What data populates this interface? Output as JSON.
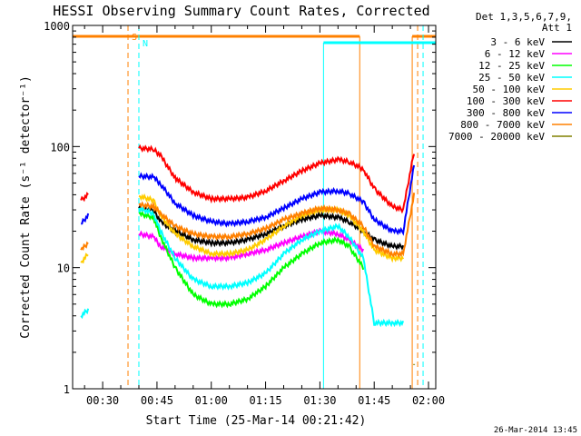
{
  "chart_data": {
    "type": "line",
    "title": "HESSI Observing Summary Count Rates, Corrected",
    "xlabel": "Start Time (25-Mar-14 00:21:42)",
    "ylabel": "Corrected Count Rate (s⁻¹ detector⁻¹)",
    "y_scale": "log",
    "ylim": [
      1,
      1000
    ],
    "xlim_minutes": [
      21.7,
      122
    ],
    "x_tick_labels": [
      "00:30",
      "00:45",
      "01:00",
      "01:15",
      "01:30",
      "01:45",
      "02:00"
    ],
    "x_tick_minutes": [
      30,
      45,
      60,
      75,
      90,
      105,
      120
    ],
    "y_tick_labels": [
      "1",
      "10",
      "100",
      "1000"
    ],
    "y_tick_values": [
      1,
      10,
      100,
      1000
    ],
    "legend_header": [
      "Det 1,3,5,6,7,9,",
      "Att 1"
    ],
    "legend_position": "outside-right",
    "footer_date": "26-Mar-2014 13:45",
    "markers": [
      {
        "label": "S",
        "color": "#ff8000",
        "dashed_minutes": [
          37,
          117
        ],
        "solid_minutes": [
          101,
          115.5
        ]
      },
      {
        "label": "N",
        "color": "#00ffff",
        "dashed_minutes": [
          40,
          118.5
        ],
        "solid_minutes": [
          21.7,
          91
        ]
      }
    ],
    "series": [
      {
        "name": "3 - 6 keV",
        "color": "#000000",
        "x": [
          24,
          26,
          33,
          38,
          40,
          44,
          46,
          50,
          55,
          60,
          65,
          70,
          75,
          80,
          85,
          90,
          95,
          98,
          102,
          105,
          110,
          113,
          116
        ],
        "y": [
          null,
          null,
          null,
          null,
          31,
          30,
          24,
          20,
          17,
          16,
          16,
          17,
          19,
          22,
          25,
          27,
          26,
          24,
          20,
          17,
          15,
          15,
          null
        ]
      },
      {
        "name": "6 - 12 keV",
        "color": "#ff00ff",
        "x": [
          24,
          26,
          33,
          38,
          40,
          44,
          46,
          50,
          55,
          60,
          65,
          70,
          75,
          80,
          85,
          90,
          95,
          98,
          102,
          105,
          110,
          113,
          116
        ],
        "y": [
          null,
          null,
          null,
          null,
          19,
          18,
          15,
          13,
          12,
          12,
          12,
          13,
          14,
          16,
          18,
          20,
          19,
          17,
          14,
          null,
          null,
          null,
          null
        ]
      },
      {
        "name": "12 - 25 keV",
        "color": "#00ff00",
        "x": [
          24,
          26,
          33,
          38,
          40,
          44,
          46,
          50,
          55,
          60,
          65,
          70,
          75,
          80,
          85,
          90,
          95,
          98,
          102,
          105,
          110,
          113,
          116
        ],
        "y": [
          null,
          null,
          null,
          null,
          28,
          26,
          18,
          10,
          6,
          5,
          5,
          5.5,
          7,
          10,
          13,
          16,
          17,
          15,
          10,
          null,
          null,
          null,
          null
        ]
      },
      {
        "name": "25 - 50 keV",
        "color": "#00ffff",
        "x": [
          24,
          26,
          33,
          38,
          40,
          44,
          46,
          50,
          55,
          60,
          65,
          70,
          75,
          80,
          85,
          90,
          95,
          98,
          102,
          105,
          110,
          113,
          116
        ],
        "y": [
          4,
          4.5,
          null,
          null,
          31,
          28,
          20,
          12,
          8,
          7,
          7,
          7.5,
          9,
          13,
          17,
          20,
          22,
          18,
          12,
          3.5,
          3.5,
          3.5,
          null
        ]
      },
      {
        "name": "50 - 100 keV",
        "color": "#ffcc00",
        "x": [
          24,
          26,
          33,
          38,
          40,
          44,
          46,
          50,
          55,
          60,
          65,
          70,
          75,
          80,
          85,
          90,
          95,
          98,
          102,
          105,
          110,
          113,
          116
        ],
        "y": [
          11,
          13,
          null,
          null,
          39,
          36,
          27,
          19,
          15,
          13,
          13,
          14,
          17,
          22,
          27,
          30,
          30,
          27,
          20,
          14,
          12,
          12,
          null
        ]
      },
      {
        "name": "100 - 300 keV",
        "color": "#ff0000",
        "x": [
          24,
          26,
          33,
          38,
          40,
          44,
          46,
          50,
          55,
          60,
          65,
          70,
          75,
          80,
          85,
          90,
          95,
          98,
          102,
          105,
          110,
          113,
          116
        ],
        "y": [
          36,
          40,
          null,
          null,
          97,
          95,
          84,
          55,
          42,
          37,
          37,
          38,
          43,
          52,
          63,
          73,
          78,
          75,
          65,
          45,
          32,
          30,
          90
        ]
      },
      {
        "name": "300 - 800 keV",
        "color": "#0000ff",
        "x": [
          24,
          26,
          33,
          38,
          40,
          44,
          46,
          50,
          55,
          60,
          65,
          70,
          75,
          80,
          85,
          90,
          95,
          98,
          102,
          105,
          110,
          113,
          116
        ],
        "y": [
          23,
          27,
          null,
          null,
          57,
          56,
          49,
          34,
          27,
          24,
          23,
          24,
          26,
          31,
          37,
          42,
          43,
          41,
          35,
          25,
          20,
          20,
          70
        ]
      },
      {
        "name": "800 - 7000 keV",
        "color": "#ff8000",
        "x": [
          24,
          26,
          33,
          38,
          40,
          44,
          46,
          50,
          55,
          60,
          65,
          70,
          75,
          80,
          85,
          90,
          95,
          98,
          102,
          105,
          110,
          113,
          116
        ],
        "y": [
          14,
          16,
          null,
          null,
          33,
          32,
          28,
          22,
          19,
          18,
          18,
          19,
          21,
          25,
          28,
          31,
          30,
          28,
          22,
          15,
          13,
          13,
          40
        ]
      },
      {
        "name": "7000 - 20000 keV",
        "color": "#808000",
        "x": [
          24,
          26,
          33,
          38,
          40,
          44,
          46,
          50,
          55,
          60,
          65,
          70,
          75,
          80,
          85,
          90,
          95,
          98,
          102,
          105,
          110,
          113,
          116
        ],
        "y": [
          null,
          null,
          null,
          null,
          null,
          null,
          null,
          null,
          null,
          null,
          null,
          null,
          null,
          null,
          null,
          null,
          null,
          null,
          null,
          null,
          null,
          null,
          1.6
        ]
      }
    ]
  }
}
